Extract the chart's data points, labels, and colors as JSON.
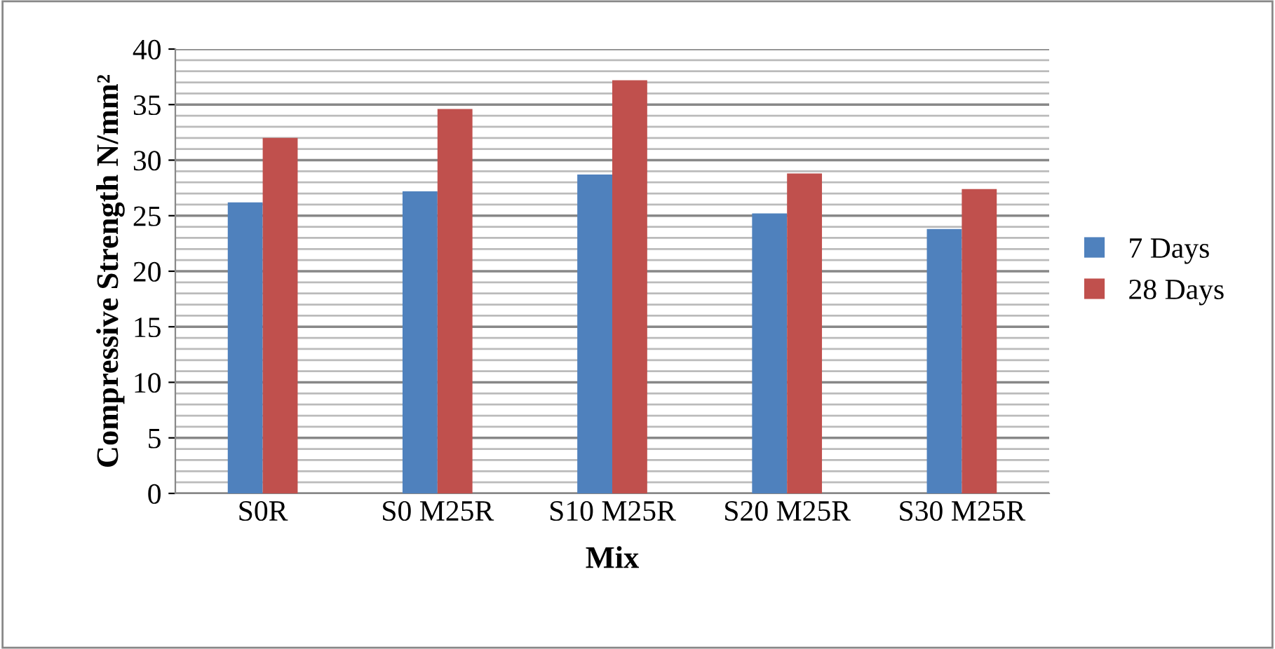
{
  "chart_data": {
    "type": "bar",
    "xlabel": "Mix",
    "ylabel": "Compressive Strength N/mm²",
    "categories": [
      "S0R",
      "S0 M25R",
      "S10 M25R",
      "S20 M25R",
      "S30 M25R"
    ],
    "series": [
      {
        "name": "7 Days",
        "color": "#4f81bd",
        "values": [
          26.2,
          27.2,
          28.7,
          25.2,
          23.8
        ]
      },
      {
        "name": "28 Days",
        "color": "#c0504d",
        "values": [
          32.0,
          34.6,
          37.2,
          28.8,
          27.4
        ]
      }
    ],
    "ylim": [
      0,
      40
    ],
    "yticks": [
      0,
      {
        "value": 1,
        "label": null
      },
      {
        "value": 2,
        "label": null
      },
      {
        "value": 3,
        "label": null
      },
      {
        "value": 4,
        "label": null
      },
      5,
      {
        "value": 6,
        "label": null
      },
      {
        "value": 7,
        "label": null
      },
      {
        "value": 8,
        "label": null
      },
      {
        "value": 9,
        "label": null
      },
      10,
      {
        "value": 11,
        "label": null
      },
      {
        "value": 12,
        "label": null
      },
      {
        "value": 13,
        "label": null
      },
      {
        "value": 14,
        "label": null
      },
      15,
      {
        "value": 16,
        "label": null
      },
      {
        "value": 17,
        "label": null
      },
      {
        "value": 18,
        "label": null
      },
      {
        "value": 19,
        "label": null
      },
      20,
      {
        "value": 21,
        "label": null
      },
      {
        "value": 22,
        "label": null
      },
      {
        "value": 23,
        "label": null
      },
      {
        "value": 24,
        "label": null
      },
      25,
      {
        "value": 26,
        "label": null
      },
      {
        "value": 27,
        "label": null
      },
      {
        "value": 28,
        "label": null
      },
      {
        "value": 29,
        "label": null
      },
      30,
      {
        "value": 31,
        "label": null
      },
      {
        "value": 32,
        "label": null
      },
      {
        "value": 33,
        "label": null
      },
      {
        "value": 34,
        "label": null
      },
      35,
      {
        "value": 36,
        "label": null
      },
      {
        "value": 37,
        "label": null
      },
      {
        "value": 38,
        "label": null
      },
      {
        "value": 39,
        "label": null
      },
      40
    ],
    "grid": "y",
    "legend": "right"
  }
}
